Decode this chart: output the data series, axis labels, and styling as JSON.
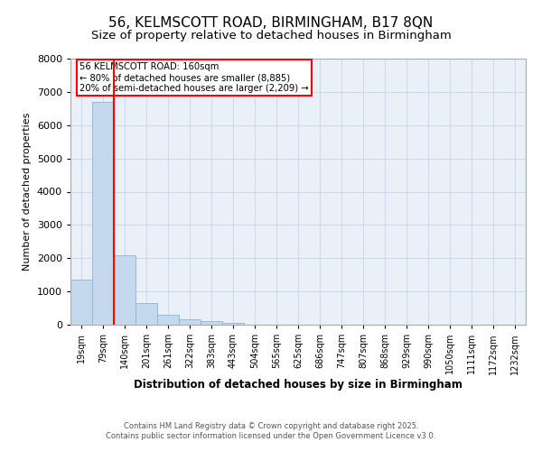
{
  "title_line1": "56, KELMSCOTT ROAD, BIRMINGHAM, B17 8QN",
  "title_line2": "Size of property relative to detached houses in Birmingham",
  "xlabel": "Distribution of detached houses by size in Birmingham",
  "ylabel": "Number of detached properties",
  "bar_labels": [
    "19sqm",
    "79sqm",
    "140sqm",
    "201sqm",
    "261sqm",
    "322sqm",
    "383sqm",
    "443sqm",
    "504sqm",
    "565sqm",
    "625sqm",
    "686sqm",
    "747sqm",
    "807sqm",
    "868sqm",
    "929sqm",
    "990sqm",
    "1050sqm",
    "1111sqm",
    "1172sqm",
    "1232sqm"
  ],
  "bar_values": [
    1350,
    6700,
    2100,
    650,
    310,
    150,
    100,
    50,
    0,
    0,
    0,
    0,
    0,
    0,
    0,
    0,
    0,
    0,
    0,
    0,
    0
  ],
  "bar_color": "#c5d9ee",
  "bar_edge_color": "#8ab4d4",
  "red_line_x": 1.5,
  "ylim": [
    0,
    8000
  ],
  "yticks": [
    0,
    1000,
    2000,
    3000,
    4000,
    5000,
    6000,
    7000,
    8000
  ],
  "annotation_title": "56 KELMSCOTT ROAD: 160sqm",
  "annotation_line1": "← 80% of detached houses are smaller (8,885)",
  "annotation_line2": "20% of semi-detached houses are larger (2,209) →",
  "grid_color": "#c8d8ea",
  "background_color": "#eaf0f8",
  "footer_line1": "Contains HM Land Registry data © Crown copyright and database right 2025.",
  "footer_line2": "Contains public sector information licensed under the Open Government Licence v3.0.",
  "title1_fontsize": 11,
  "title2_fontsize": 9.5,
  "xlabel_fontsize": 8.5,
  "ylabel_fontsize": 8,
  "tick_fontsize": 7,
  "footer_fontsize": 6
}
